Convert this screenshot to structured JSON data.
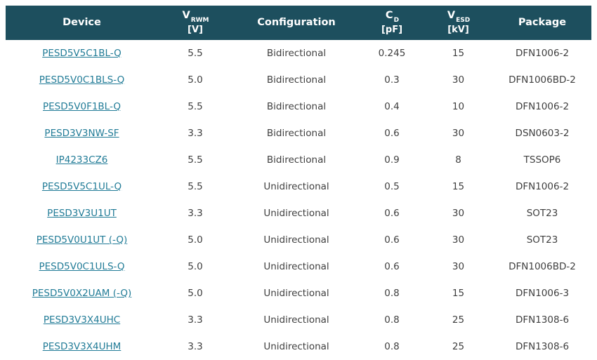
{
  "colors": {
    "header_bg": "#1d4f5e",
    "header_text": "#ffffff",
    "link": "#227c97",
    "cell_text": "#3f3f3f",
    "page_bg": "#ffffff"
  },
  "table": {
    "columns": [
      {
        "id": "device",
        "label": "Device"
      },
      {
        "id": "vrwm",
        "symbol": "V",
        "sub": "RWM",
        "unit": "[V]"
      },
      {
        "id": "configuration",
        "label": "Configuration"
      },
      {
        "id": "cd",
        "symbol": "C",
        "sub": "D",
        "unit": "[pF]"
      },
      {
        "id": "vesd",
        "symbol": "V",
        "sub": "ESD",
        "unit": "[kV]"
      },
      {
        "id": "package",
        "label": "Package"
      }
    ],
    "rows": [
      [
        "PESD5V5C1BL-Q",
        "5.5",
        "Bidirectional",
        "0.245",
        "15",
        "DFN1006-2"
      ],
      [
        "PESD5V0C1BLS-Q",
        "5.0",
        "Bidirectional",
        "0.3",
        "30",
        "DFN1006BD-2"
      ],
      [
        "PESD5V0F1BL-Q",
        "5.5",
        "Bidirectional",
        "0.4",
        "10",
        "DFN1006-2"
      ],
      [
        "PESD3V3NW-SF",
        "3.3",
        "Bidirectional",
        "0.6",
        "30",
        "DSN0603-2"
      ],
      [
        "IP4233CZ6",
        "5.5",
        "Bidirectional",
        "0.9",
        "8",
        "TSSOP6"
      ],
      [
        "PESD5V5C1UL-Q",
        "5.5",
        "Unidirectional",
        "0.5",
        "15",
        "DFN1006-2"
      ],
      [
        "PESD3V3U1UT",
        "3.3",
        "Unidirectional",
        "0.6",
        "30",
        "SOT23"
      ],
      [
        "PESD5V0U1UT (-Q)",
        "5.0",
        "Unidirectional",
        "0.6",
        "30",
        "SOT23"
      ],
      [
        "PESD5V0C1ULS-Q",
        "5.0",
        "Unidirectional",
        "0.6",
        "30",
        "DFN1006BD-2"
      ],
      [
        "PESD5V0X2UAM (-Q)",
        "5.0",
        "Unidirectional",
        "0.8",
        "15",
        "DFN1006-3"
      ],
      [
        "PESD3V3X4UHC",
        "3.3",
        "Unidirectional",
        "0.8",
        "25",
        "DFN1308-6"
      ],
      [
        "PESD3V3X4UHM",
        "3.3",
        "Unidirectional",
        "0.8",
        "25",
        "DFN1308-6"
      ]
    ]
  }
}
